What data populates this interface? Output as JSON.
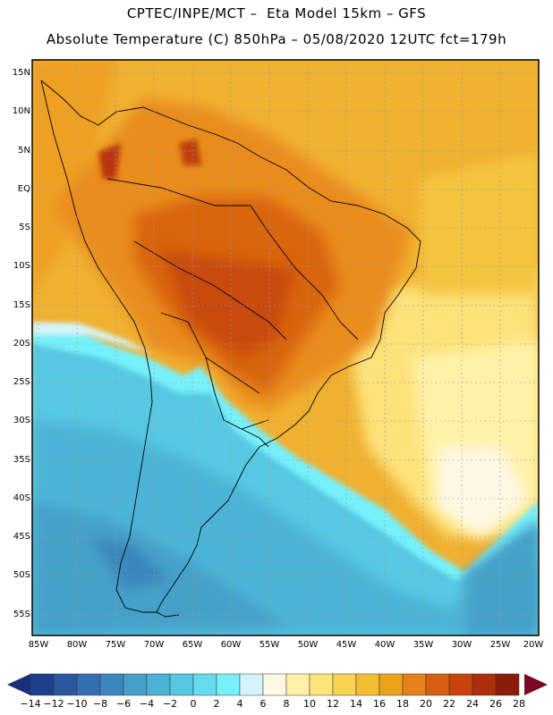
{
  "header": {
    "line1": "CPTEC/INPE/MCT –  Eta Model 15km – GFS",
    "line2": "Absolute Temperature (C) 850hPa – 05/08/2020 12UTC fct=179h"
  },
  "map": {
    "lat_labels": [
      "15N",
      "10N",
      "5N",
      "EQ",
      "5S",
      "10S",
      "15S",
      "20S",
      "25S",
      "30S",
      "35S",
      "40S",
      "45S",
      "50S",
      "55S"
    ],
    "lon_labels": [
      "85W",
      "80W",
      "75W",
      "70W",
      "65W",
      "60W",
      "55W",
      "50W",
      "45W",
      "40W",
      "35W",
      "30W",
      "25W",
      "20W"
    ]
  },
  "colorbar": {
    "labels": [
      "−14",
      "−12",
      "−10",
      "−8",
      "−6",
      "−4",
      "−2",
      "0",
      "2",
      "4",
      "6",
      "8",
      "10",
      "12",
      "14",
      "16",
      "18",
      "20",
      "22",
      "24",
      "26",
      "28"
    ],
    "colors": [
      "#1e3f8c",
      "#2a58a0",
      "#336fae",
      "#3b86be",
      "#44a0c8",
      "#4bb4d6",
      "#56c8e2",
      "#64dcee",
      "#76f0fa",
      "#d4f4fc",
      "#fff8e4",
      "#fff2a8",
      "#fde57a",
      "#f9d352",
      "#f3bd30",
      "#eda21e",
      "#e5801a",
      "#d85f12",
      "#c8420c",
      "#ad2e0a",
      "#8a1c08"
    ],
    "low_arrow_color": "#1a2f7a",
    "high_arrow_color": "#7a0a24"
  }
}
